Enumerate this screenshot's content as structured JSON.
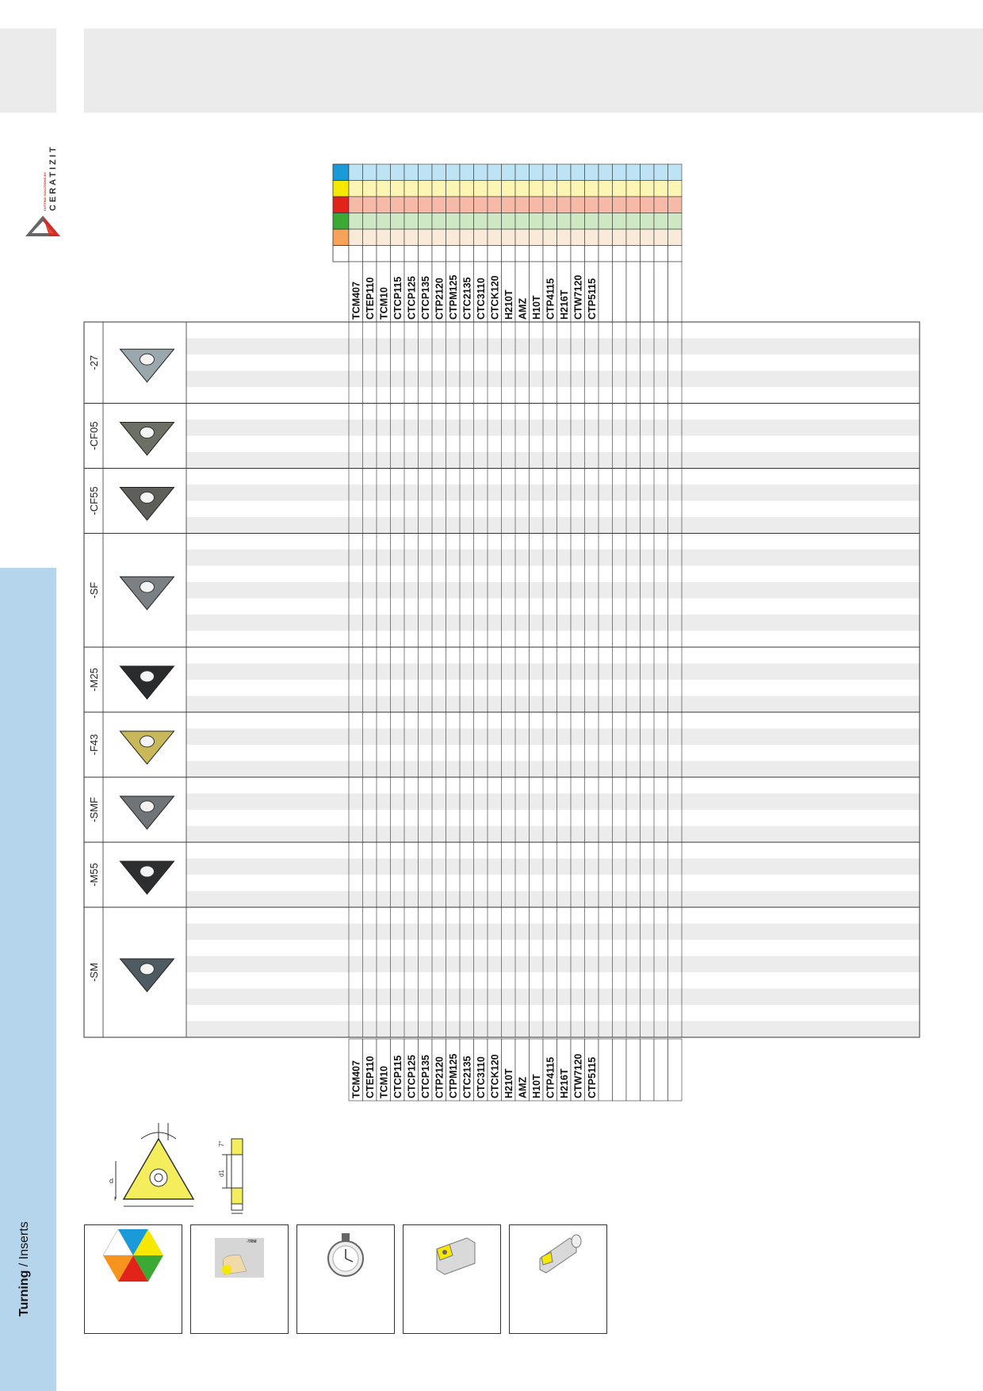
{
  "brand": {
    "tagline": "CUTTING SOLUTIONS BY",
    "name": "CERATIZIT"
  },
  "side_caption": {
    "bold": "Turning",
    "rest": " / Inserts"
  },
  "grades": [
    "TCM407",
    "CTEP110",
    "TCM10",
    "CTCP115",
    "CTCP125",
    "CTCP135",
    "CTP2120",
    "CTPM125",
    "CTC2135",
    "CTC3110",
    "CTCK120",
    "H210T",
    "AMZ",
    "H10T",
    "CTP4115",
    "H216T",
    "CTW7120",
    "CTP5115",
    "",
    "",
    "",
    "",
    "",
    ""
  ],
  "material_colors": [
    "#1a9ad8",
    "#f6e800",
    "#e2231a",
    "#3aaa35",
    "#f7a35c",
    "#ffffff"
  ],
  "material_row_tints": [
    "#bde3f5",
    "#fdf5b4",
    "#f7b9a8",
    "#cfe8c4",
    "#f9ead9",
    "#ffffff"
  ],
  "geometries": [
    {
      "label": "-27",
      "rows": 5,
      "insert_color": "#9aa7ad"
    },
    {
      "label": "-CF05",
      "rows": 4,
      "insert_color": "#6b6f64"
    },
    {
      "label": "-CF55",
      "rows": 4,
      "insert_color": "#5d5f58"
    },
    {
      "label": "-SF",
      "rows": 7,
      "insert_color": "#7b8085"
    },
    {
      "label": "-M25",
      "rows": 4,
      "insert_color": "#2a2b2d"
    },
    {
      "label": "-F43",
      "rows": 4,
      "insert_color": "#c8b85a"
    },
    {
      "label": "-SMF",
      "rows": 4,
      "insert_color": "#6f7479"
    },
    {
      "label": "-M55",
      "rows": 4,
      "insert_color": "#2d2e30"
    },
    {
      "label": "-SM",
      "rows": 8,
      "insert_color": "#4e5b63"
    }
  ],
  "drawing_labels": {
    "d": "d",
    "r": "r",
    "d1": "d1",
    "angle": "7°"
  },
  "legend_icons": [
    {
      "name": "material-hexagon-icon"
    },
    {
      "name": "chipbreaker-chart-icon",
      "label": "-TRM"
    },
    {
      "name": "stopwatch-icon"
    },
    {
      "name": "external-toolholder-icon"
    },
    {
      "name": "boring-bar-icon"
    }
  ]
}
